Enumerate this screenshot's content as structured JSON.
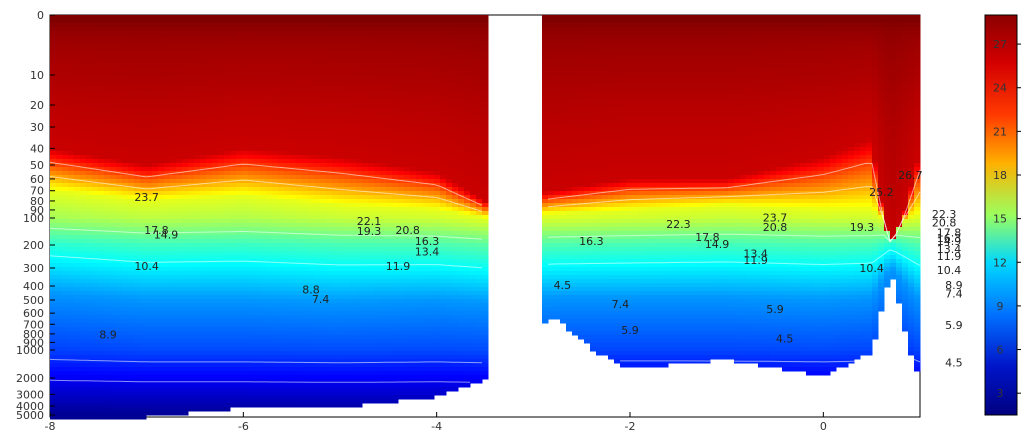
{
  "chart_data": {
    "type": "heatmap",
    "colormap": "jet",
    "x_ticks": [
      "-8",
      "-6",
      "-4",
      "-2",
      "0"
    ],
    "xlim": [
      -8,
      1.0
    ],
    "y_scale": "log (depth, increasing downward)",
    "ylim": [
      0,
      5000
    ],
    "y_ticks": [
      "0",
      "10",
      "20",
      "30",
      "40",
      "50",
      "60",
      "70",
      "80",
      "90",
      "100",
      "200",
      "300",
      "400",
      "500",
      "600",
      "700",
      "800",
      "900",
      "1000",
      "2000",
      "3000",
      "4000",
      "5000"
    ],
    "colorbar": {
      "ticks": [
        "27",
        "24",
        "21",
        "18",
        "15",
        "12",
        "9",
        "6",
        "3"
      ],
      "range": [
        1.5,
        29
      ]
    },
    "gap_x": [
      -3.5,
      -2.9
    ],
    "depth_profile": {
      "x": [
        -8,
        -7,
        -6,
        -5,
        -4,
        -3.5,
        -2.8,
        -2,
        -1,
        0,
        0.5,
        0.7,
        1.0
      ],
      "depth_27": [
        40,
        50,
        40,
        45,
        55,
        80,
        70,
        60,
        60,
        45,
        35,
        200,
        40
      ],
      "depth_18": [
        70,
        80,
        75,
        85,
        90,
        100,
        95,
        90,
        85,
        90,
        90,
        110,
        95
      ],
      "depth_9": [
        450,
        500,
        500,
        520,
        500,
        520,
        480,
        480,
        480,
        500,
        480,
        300,
        500
      ],
      "bottom_depth": [
        5000,
        5000,
        4000,
        4000,
        3000,
        2000,
        600,
        1500,
        1200,
        1800,
        1000,
        300,
        2000
      ]
    },
    "contour_labels": [
      {
        "text": "23.7",
        "x": -7.0,
        "depth": 80
      },
      {
        "text": "17.8",
        "x": -6.9,
        "depth": 150
      },
      {
        "text": "14.9",
        "x": -6.8,
        "depth": 170
      },
      {
        "text": "10.4",
        "x": -7.0,
        "depth": 310
      },
      {
        "text": "8.9",
        "x": -7.4,
        "depth": 850
      },
      {
        "text": "22.1",
        "x": -4.7,
        "depth": 120
      },
      {
        "text": "19.3",
        "x": -4.7,
        "depth": 155
      },
      {
        "text": "20.8",
        "x": -4.3,
        "depth": 150
      },
      {
        "text": "16.3",
        "x": -4.1,
        "depth": 200
      },
      {
        "text": "13.4",
        "x": -4.1,
        "depth": 240
      },
      {
        "text": "11.9",
        "x": -4.4,
        "depth": 310
      },
      {
        "text": "8.8",
        "x": -5.3,
        "depth": 450
      },
      {
        "text": "7.4",
        "x": -5.2,
        "depth": 520
      },
      {
        "text": "16.3",
        "x": -2.4,
        "depth": 200
      },
      {
        "text": "22.3",
        "x": -1.5,
        "depth": 130
      },
      {
        "text": "17.8",
        "x": -1.2,
        "depth": 180
      },
      {
        "text": "14.9",
        "x": -1.1,
        "depth": 210
      },
      {
        "text": "23.7",
        "x": -0.5,
        "depth": 110
      },
      {
        "text": "20.8",
        "x": -0.5,
        "depth": 140
      },
      {
        "text": "13.4",
        "x": -0.7,
        "depth": 250
      },
      {
        "text": "11.9",
        "x": -0.7,
        "depth": 280
      },
      {
        "text": "19.3",
        "x": 0.4,
        "depth": 140
      },
      {
        "text": "10.4",
        "x": 0.5,
        "depth": 320
      },
      {
        "text": "25.2",
        "x": 0.6,
        "depth": 75
      },
      {
        "text": "26.7",
        "x": 0.9,
        "depth": 60
      },
      {
        "text": "22.3",
        "x": 1.25,
        "depth": 100
      },
      {
        "text": "20.8",
        "x": 1.25,
        "depth": 125
      },
      {
        "text": "17.8",
        "x": 1.3,
        "depth": 160
      },
      {
        "text": "16.3",
        "x": 1.3,
        "depth": 185
      },
      {
        "text": "14.9",
        "x": 1.3,
        "depth": 200
      },
      {
        "text": "13.4",
        "x": 1.3,
        "depth": 230
      },
      {
        "text": "11.9",
        "x": 1.3,
        "depth": 260
      },
      {
        "text": "10.4",
        "x": 1.3,
        "depth": 330
      },
      {
        "text": "8.9",
        "x": 1.35,
        "depth": 420
      },
      {
        "text": "7.4",
        "x": 1.35,
        "depth": 480
      },
      {
        "text": "5.9",
        "x": 1.35,
        "depth": 750
      },
      {
        "text": "4.5",
        "x": 1.35,
        "depth": 1500
      },
      {
        "text": "4.5",
        "x": -2.7,
        "depth": 420
      },
      {
        "text": "7.4",
        "x": -2.1,
        "depth": 560
      },
      {
        "text": "5.9",
        "x": -2.0,
        "depth": 800
      },
      {
        "text": "5.9",
        "x": -0.5,
        "depth": 600
      },
      {
        "text": "4.5",
        "x": -0.4,
        "depth": 900
      }
    ]
  }
}
